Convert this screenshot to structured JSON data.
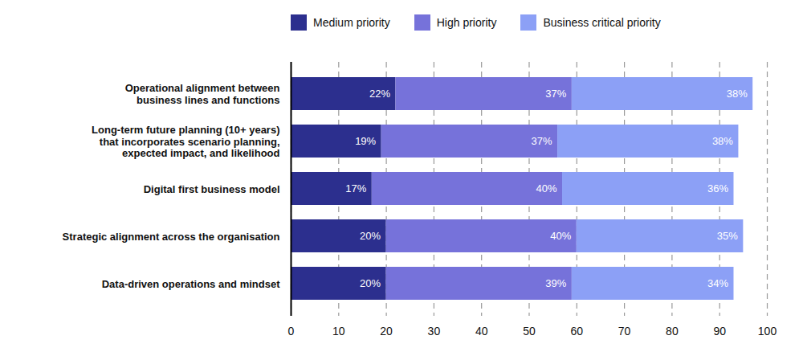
{
  "chart_data": {
    "type": "bar",
    "orientation": "horizontal",
    "stacked": true,
    "data_labels": true,
    "grid": true,
    "legend": "top",
    "categories": [
      "Operational alignment between\nbusiness lines and functions",
      "Long-term future planning (10+ years)\nthat incorporates scenario planning,\nexpected impact, and likelihood",
      "Digital first business model",
      "Strategic alignment across the organisation",
      "Data-driven operations and mindset"
    ],
    "series": [
      {
        "name": "Medium priority",
        "color": "#2c2f8e",
        "values": [
          22,
          19,
          17,
          20,
          20
        ],
        "value_labels": [
          "22%",
          "19%",
          "17%",
          "20%",
          "20%"
        ]
      },
      {
        "name": "High priority",
        "color": "#7672da",
        "values": [
          37,
          37,
          40,
          40,
          39
        ],
        "value_labels": [
          "37%",
          "37%",
          "40%",
          "40%",
          "39%"
        ]
      },
      {
        "name": "Business critical priority",
        "color": "#8ca0f6",
        "values": [
          38,
          38,
          36,
          35,
          34
        ],
        "value_labels": [
          "38%",
          "38%",
          "36%",
          "35%",
          "34%"
        ]
      }
    ],
    "xlim": [
      0,
      100
    ],
    "xticks": [
      0,
      10,
      20,
      30,
      40,
      50,
      60,
      70,
      80,
      90,
      100
    ]
  }
}
